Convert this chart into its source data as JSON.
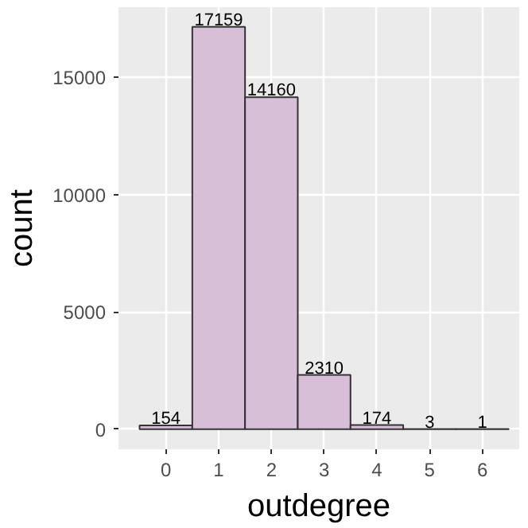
{
  "chart_data": {
    "type": "histogram",
    "xlabel": "outdegree",
    "ylabel": "count",
    "bins": [
      -0.5,
      0.5,
      1.5,
      2.5,
      3.5,
      4.5,
      5.5,
      6.5
    ],
    "values": [
      154,
      17159,
      14160,
      2310,
      174,
      3,
      1
    ],
    "color": "#d8bfd8",
    "xlim": [
      -0.9,
      6.7
    ],
    "xticks": [
      0,
      1,
      2,
      3,
      4,
      5,
      6
    ],
    "ylim": [
      -860,
      18000
    ],
    "yticks": [
      0,
      5000,
      10000,
      15000
    ],
    "grid": true,
    "data_labels": true
  }
}
